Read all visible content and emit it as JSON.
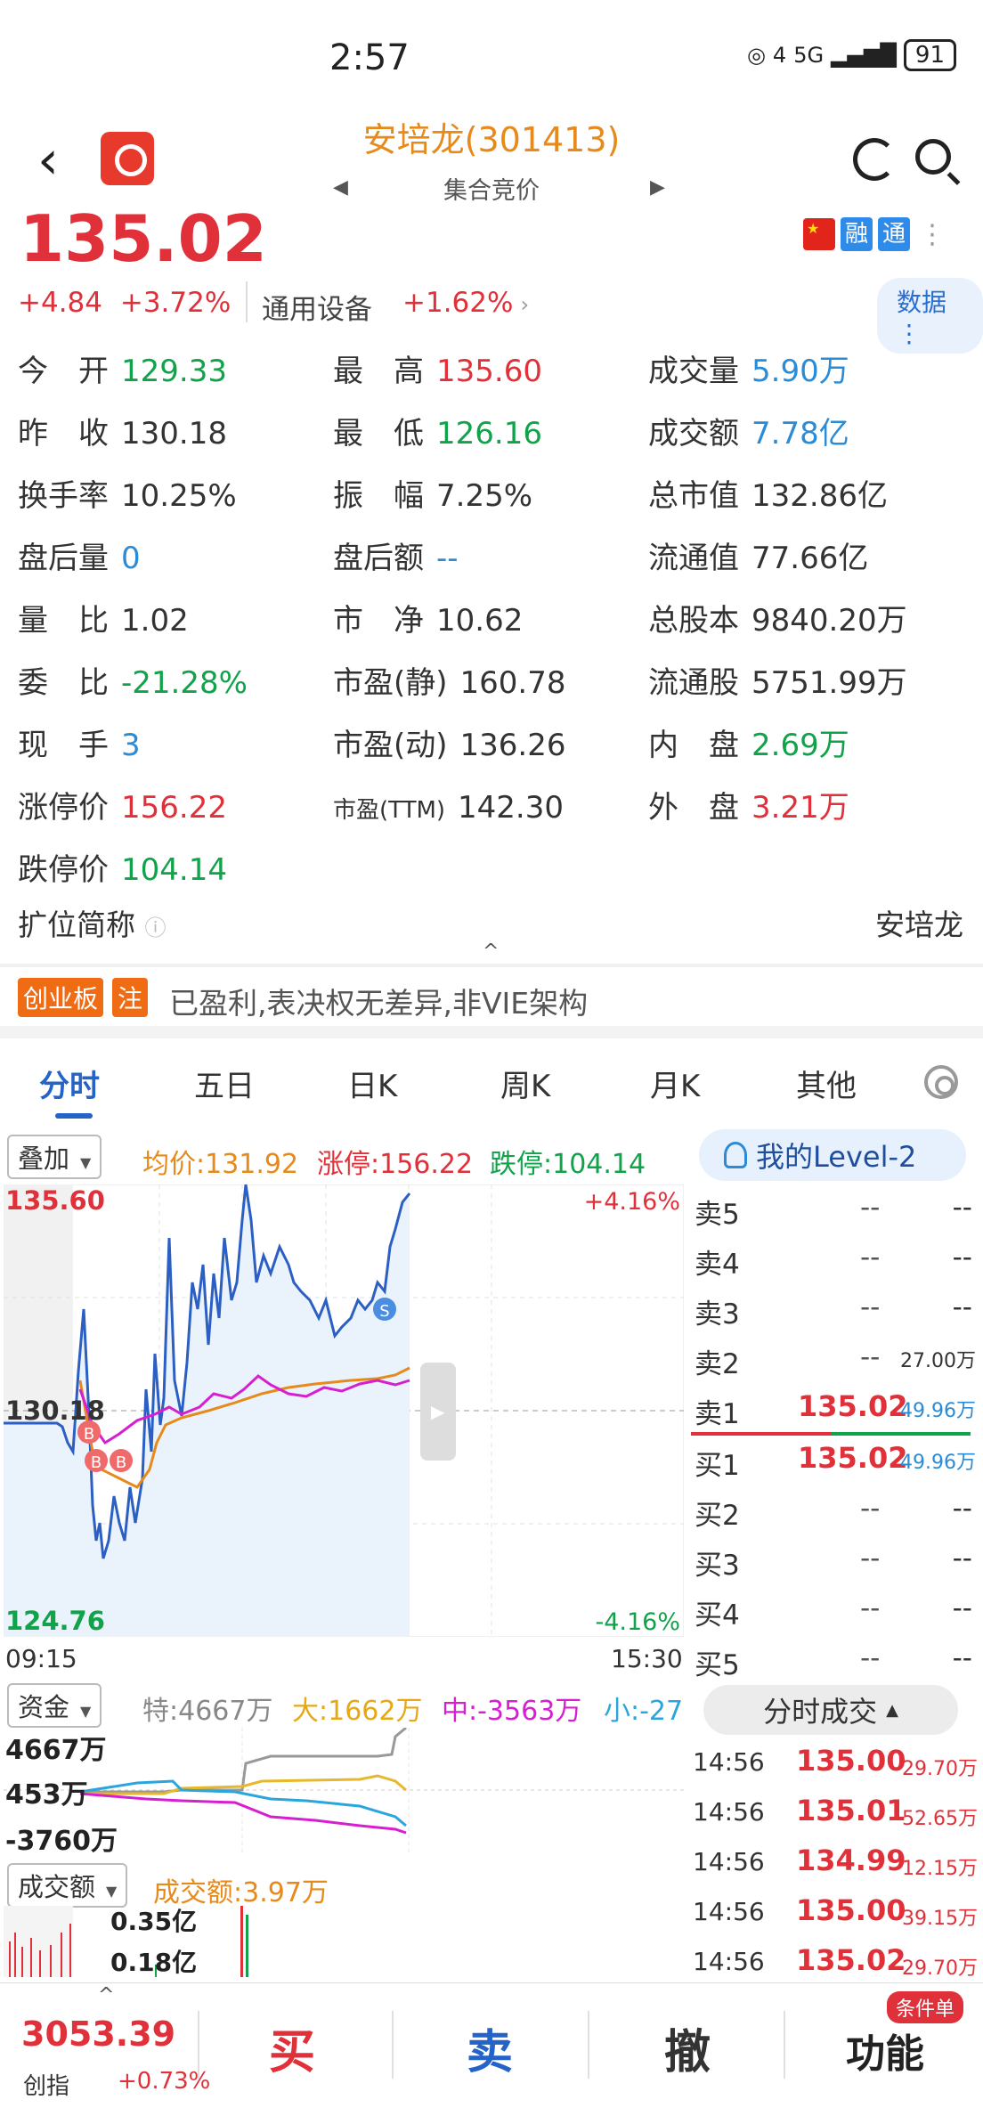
{
  "status_bar": {
    "time": "2:57",
    "network": "5G",
    "signal_sub": "4",
    "battery": "91"
  },
  "header": {
    "title": "安培龙(301413)",
    "subtitle": "集合竞价"
  },
  "quote": {
    "price": "135.02",
    "change": "+4.84",
    "change_pct": "+3.72%",
    "sector": "通用设备",
    "sector_change": "+1.62%",
    "badges": [
      "融",
      "通"
    ],
    "data_button": "数据"
  },
  "stats": [
    {
      "label": "今　开",
      "value": "129.33",
      "color": "green"
    },
    {
      "label": "最　高",
      "value": "135.60",
      "color": "red"
    },
    {
      "label": "成交量",
      "value": "5.90万",
      "color": "blue"
    },
    {
      "label": "昨　收",
      "value": "130.18",
      "color": "dark"
    },
    {
      "label": "最　低",
      "value": "126.16",
      "color": "green"
    },
    {
      "label": "成交额",
      "value": "7.78亿",
      "color": "blue"
    },
    {
      "label": "换手率",
      "value": "10.25%",
      "color": "dark"
    },
    {
      "label": "振　幅",
      "value": "7.25%",
      "color": "dark"
    },
    {
      "label": "总市值",
      "value": "132.86亿",
      "color": "dark"
    },
    {
      "label": "盘后量",
      "value": "0",
      "color": "blue"
    },
    {
      "label": "盘后额",
      "value": "--",
      "color": "blue"
    },
    {
      "label": "流通值",
      "value": "77.66亿",
      "color": "dark"
    },
    {
      "label": "量　比",
      "value": "1.02",
      "color": "dark"
    },
    {
      "label": "市　净",
      "value": "10.62",
      "color": "dark"
    },
    {
      "label": "总股本",
      "value": "9840.20万",
      "color": "dark"
    },
    {
      "label": "委　比",
      "value": "-21.28%",
      "color": "green"
    },
    {
      "label": "市盈(静)",
      "value": "160.78",
      "color": "dark"
    },
    {
      "label": "流通股",
      "value": "5751.99万",
      "color": "dark"
    },
    {
      "label": "现　手",
      "value": "3",
      "color": "blue"
    },
    {
      "label": "市盈(动)",
      "value": "136.26",
      "color": "dark"
    },
    {
      "label": "内　盘",
      "value": "2.69万",
      "color": "green"
    },
    {
      "label": "涨停价",
      "value": "156.22",
      "color": "red"
    },
    {
      "label": "市盈(TTM)",
      "value": "142.30",
      "color": "dark"
    },
    {
      "label": "外　盘",
      "value": "3.21万",
      "color": "red"
    },
    {
      "label": "跌停价",
      "value": "104.14",
      "color": "green"
    }
  ],
  "expand": {
    "label": "扩位简称",
    "value": "安培龙"
  },
  "notice": {
    "tag1": "创业板",
    "tag2": "注",
    "text": "已盈利,表决权无差异,非VIE架构"
  },
  "tabs": [
    "分时",
    "五日",
    "日K",
    "周K",
    "月K",
    "其他"
  ],
  "chart_bar": {
    "overlay": "叠加",
    "avg": "均价:131.92",
    "up_limit": "涨停:156.22",
    "down_limit": "跌停:104.14",
    "level2": "我的Level-2"
  },
  "chart_data": {
    "type": "line",
    "y_high": "135.60",
    "y_mid": "130.18",
    "y_low": "124.76",
    "pct_high": "+4.16%",
    "pct_low": "-4.16%",
    "x_start": "09:15",
    "x_end": "15:30",
    "ylim": [
      124.76,
      135.6
    ],
    "markers": [
      "B",
      "B",
      "B",
      "S"
    ]
  },
  "order_book": {
    "asks": [
      {
        "name": "卖5",
        "price": "--",
        "vol": "--"
      },
      {
        "name": "卖4",
        "price": "--",
        "vol": "--"
      },
      {
        "name": "卖3",
        "price": "--",
        "vol": "--"
      },
      {
        "name": "卖2",
        "price": "--",
        "vol": "27.00万"
      },
      {
        "name": "卖1",
        "price": "135.02",
        "vol": "49.96万"
      }
    ],
    "bids": [
      {
        "name": "买1",
        "price": "135.02",
        "vol": "49.96万"
      },
      {
        "name": "买2",
        "price": "--",
        "vol": "--"
      },
      {
        "name": "买3",
        "price": "--",
        "vol": "--"
      },
      {
        "name": "买4",
        "price": "--",
        "vol": "--"
      },
      {
        "name": "买5",
        "price": "--",
        "vol": "--"
      }
    ]
  },
  "fund_flow": {
    "selector": "资金",
    "special": "特:4667万",
    "large": "大:1662万",
    "medium": "中:-3563万",
    "small": "小:-27",
    "y_top": "4667万",
    "y_mid": "453万",
    "y_low": "-3760万"
  },
  "volume": {
    "selector": "成交额",
    "label": "成交额:3.97万",
    "y_top": "0.35亿",
    "y_mid": "0.18亿"
  },
  "trade_detail": {
    "toggle": "分时成交",
    "rows": [
      {
        "time": "14:56",
        "price": "135.00",
        "vol": "29.70万"
      },
      {
        "time": "14:56",
        "price": "135.01",
        "vol": "52.65万"
      },
      {
        "time": "14:56",
        "price": "134.99",
        "vol": "12.15万"
      },
      {
        "time": "14:56",
        "price": "135.00",
        "vol": "39.15万"
      },
      {
        "time": "14:56",
        "price": "135.02",
        "vol": "29.70万"
      }
    ]
  },
  "bottom_bar": {
    "index_value": "3053.39",
    "index_name": "创指",
    "index_change": "+0.73%",
    "buy": "买",
    "sell": "卖",
    "cancel": "撤",
    "func": "功能",
    "cond_badge": "条件单"
  },
  "colors": {
    "red": "#e0313a",
    "green": "#11a34a",
    "blue": "#2a8bd6",
    "orange": "#e68a1c"
  }
}
